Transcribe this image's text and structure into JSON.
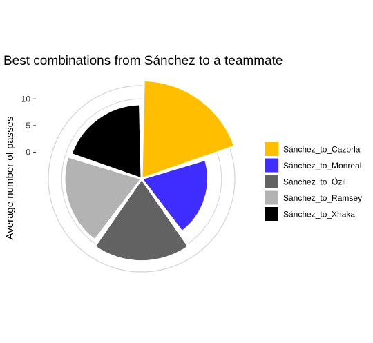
{
  "chart_data": {
    "type": "polar-bar",
    "title": "Best combinations from Sánchez to a teammate",
    "ylabel": "Average number of passes",
    "xlabel": "",
    "ylim": [
      -5,
      12.5
    ],
    "yticks": [
      0,
      5,
      10
    ],
    "yticklabels": [
      "0",
      "5",
      "10"
    ],
    "grid": true,
    "legend_position": "right",
    "categories": [
      "Sánchez_to_Cazorla",
      "Sánchez_to_Monreal",
      "Sánchez_to_Özil",
      "Sánchez_to_Ramsey",
      "Sánchez_to_Xhaka"
    ],
    "values": [
      13.5,
      7.5,
      10.5,
      9.5,
      9.0
    ],
    "colors": [
      "#ffbf00",
      "#3f2dff",
      "#626262",
      "#b3b3b3",
      "#000000"
    ]
  }
}
